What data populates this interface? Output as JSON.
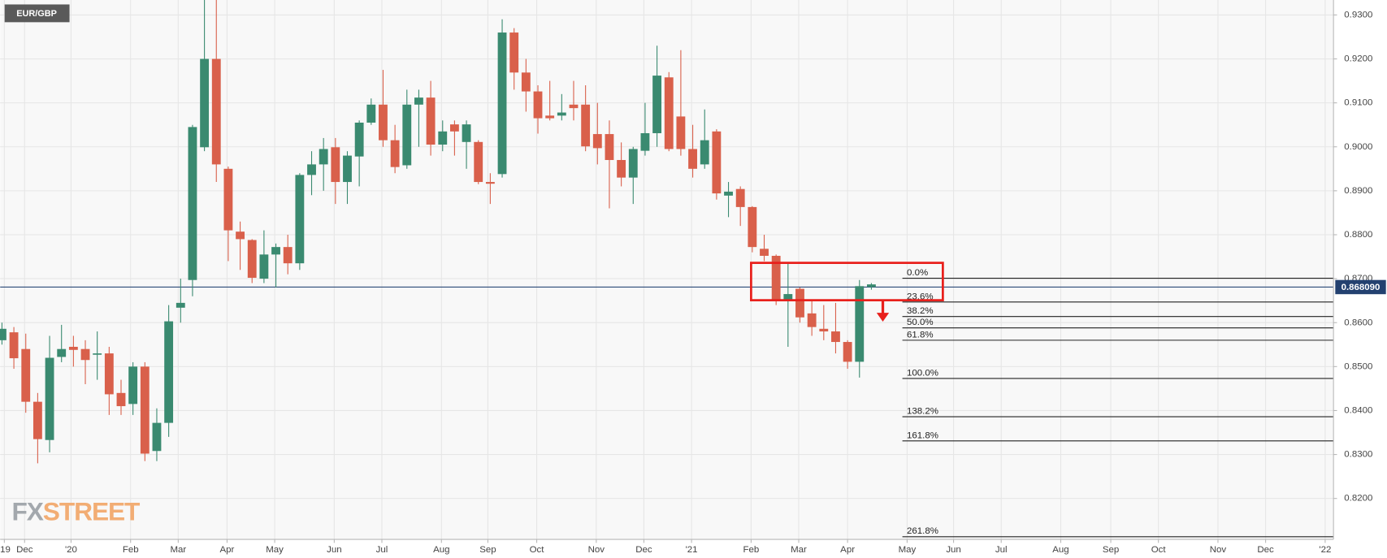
{
  "chart_data": {
    "type": "candlestick",
    "symbol": "EUR/GBP",
    "watermark": [
      "FX",
      "STREET"
    ],
    "up_color": "#3a8a70",
    "down_color": "#d9604b",
    "grid": true,
    "open": [
      0.856,
      0.8578,
      0.854,
      0.842,
      0.8333,
      0.8522,
      0.8545,
      0.854,
      0.8527,
      0.853,
      0.844,
      0.8415,
      0.85,
      0.8308,
      0.8372,
      0.8634,
      0.8697,
      0.8999,
      0.92,
      0.895,
      0.8807,
      0.8788,
      0.87,
      0.8755,
      0.8772,
      0.8735,
      0.8936,
      0.896,
      0.8999,
      0.892,
      0.8978,
      0.9055,
      0.9096,
      0.9015,
      0.8958,
      0.9096,
      0.9112,
      0.9005,
      0.9051,
      0.9011,
      0.9011,
      0.892,
      0.8938,
      0.926,
      0.9169,
      0.9126,
      0.9071,
      0.9071,
      0.9096,
      0.9096,
      0.9029,
      0.9029,
      0.897,
      0.893,
      0.8991,
      0.9031,
      0.9158,
      0.9069,
      0.8995,
      0.896,
      0.9035,
      0.8889,
      0.8904,
      0.8863,
      0.8768,
      0.8752,
      0.8651,
      0.8677,
      0.8621,
      0.8586,
      0.858,
      0.8556,
      0.8511,
      0.8681
    ],
    "high": [
      0.86,
      0.859,
      0.8575,
      0.844,
      0.857,
      0.8595,
      0.857,
      0.856,
      0.858,
      0.8545,
      0.847,
      0.851,
      0.851,
      0.8405,
      0.864,
      0.87,
      0.905,
      0.934,
      0.934,
      0.8955,
      0.883,
      0.879,
      0.881,
      0.878,
      0.88,
      0.894,
      0.899,
      0.902,
      0.902,
      0.899,
      0.906,
      0.911,
      0.9175,
      0.905,
      0.913,
      0.913,
      0.915,
      0.906,
      0.906,
      0.906,
      0.9015,
      0.894,
      0.929,
      0.927,
      0.92,
      0.914,
      0.915,
      0.912,
      0.915,
      0.914,
      0.91,
      0.906,
      0.901,
      0.9,
      0.91,
      0.923,
      0.917,
      0.922,
      0.905,
      0.9085,
      0.904,
      0.892,
      0.891,
      0.8865,
      0.88,
      0.8755,
      0.8735,
      0.868,
      0.865,
      0.864,
      0.8645,
      0.856,
      0.8697,
      0.869
    ],
    "low": [
      0.855,
      0.8495,
      0.8395,
      0.828,
      0.8305,
      0.851,
      0.85,
      0.846,
      0.847,
      0.839,
      0.839,
      0.839,
      0.8285,
      0.8285,
      0.834,
      0.86,
      0.866,
      0.899,
      0.892,
      0.874,
      0.872,
      0.869,
      0.869,
      0.868,
      0.871,
      0.872,
      0.889,
      0.89,
      0.887,
      0.887,
      0.891,
      0.905,
      0.9,
      0.894,
      0.895,
      0.9,
      0.898,
      0.899,
      0.898,
      0.895,
      0.8915,
      0.887,
      0.893,
      0.913,
      0.908,
      0.903,
      0.906,
      0.906,
      0.906,
      0.899,
      0.896,
      0.886,
      0.891,
      0.887,
      0.898,
      0.9,
      0.899,
      0.898,
      0.893,
      0.895,
      0.888,
      0.884,
      0.882,
      0.876,
      0.874,
      0.864,
      0.8545,
      0.86,
      0.857,
      0.856,
      0.853,
      0.8495,
      0.8475,
      0.8675
    ],
    "close": [
      0.8586,
      0.8519,
      0.842,
      0.8335,
      0.852,
      0.854,
      0.8538,
      0.8515,
      0.853,
      0.8437,
      0.841,
      0.85,
      0.8302,
      0.8372,
      0.8603,
      0.8645,
      0.9045,
      0.92,
      0.896,
      0.881,
      0.879,
      0.8702,
      0.8755,
      0.8772,
      0.8735,
      0.8936,
      0.896,
      0.8995,
      0.892,
      0.898,
      0.9055,
      0.9096,
      0.9015,
      0.8954,
      0.9096,
      0.9112,
      0.9005,
      0.9035,
      0.9035,
      0.9051,
      0.892,
      0.8916,
      0.926,
      0.9169,
      0.9126,
      0.9065,
      0.9065,
      0.9078,
      0.9088,
      0.9001,
      0.8997,
      0.897,
      0.893,
      0.8995,
      0.9031,
      0.9162,
      0.8995,
      0.8995,
      0.895,
      0.9015,
      0.8894,
      0.8898,
      0.8863,
      0.8772,
      0.8752,
      0.8651,
      0.8665,
      0.8612,
      0.859,
      0.858,
      0.8556,
      0.8511,
      0.8683,
      0.8687
    ],
    "xlim": [
      -0.15,
      111.8
    ],
    "xticks": [
      {
        "value": 0.2,
        "label": "'19"
      },
      {
        "value": 1.9,
        "label": "Dec"
      },
      {
        "value": 5.8,
        "label": "'20"
      },
      {
        "value": 10.8,
        "label": "Feb"
      },
      {
        "value": 14.8,
        "label": "Mar"
      },
      {
        "value": 18.9,
        "label": "Apr"
      },
      {
        "value": 22.9,
        "label": "May"
      },
      {
        "value": 27.9,
        "label": "Jun"
      },
      {
        "value": 31.9,
        "label": "Jul"
      },
      {
        "value": 36.9,
        "label": "Aug"
      },
      {
        "value": 40.8,
        "label": "Sep"
      },
      {
        "value": 44.9,
        "label": "Oct"
      },
      {
        "value": 49.9,
        "label": "Nov"
      },
      {
        "value": 53.9,
        "label": "Dec"
      },
      {
        "value": 57.9,
        "label": "'21"
      },
      {
        "value": 62.9,
        "label": "Feb"
      },
      {
        "value": 66.9,
        "label": "Mar"
      },
      {
        "value": 71.0,
        "label": "Apr"
      },
      {
        "value": 76.0,
        "label": "May"
      },
      {
        "value": 79.9,
        "label": "Jun"
      },
      {
        "value": 83.9,
        "label": "Jul"
      },
      {
        "value": 88.9,
        "label": "Aug"
      },
      {
        "value": 93.1,
        "label": "Sep"
      },
      {
        "value": 97.1,
        "label": "Oct"
      },
      {
        "value": 102.1,
        "label": "Nov"
      },
      {
        "value": 106.1,
        "label": "Dec"
      },
      {
        "value": 111.1,
        "label": "'22"
      }
    ],
    "ylim": [
      0.8107,
      0.9334
    ],
    "yticks": [
      {
        "value": 0.82,
        "label": "0.8200"
      },
      {
        "value": 0.83,
        "label": "0.8300"
      },
      {
        "value": 0.84,
        "label": "0.8400"
      },
      {
        "value": 0.85,
        "label": "0.8500"
      },
      {
        "value": 0.86,
        "label": "0.8600"
      },
      {
        "value": 0.87,
        "label": "0.8700"
      },
      {
        "value": 0.88,
        "label": "0.8800"
      },
      {
        "value": 0.89,
        "label": "0.8900"
      },
      {
        "value": 0.9,
        "label": "0.9000"
      },
      {
        "value": 0.91,
        "label": "0.9100"
      },
      {
        "value": 0.92,
        "label": "0.9200"
      },
      {
        "value": 0.93,
        "label": "0.9300"
      }
    ],
    "last_price": {
      "value": 0.86809,
      "label": "0.868090"
    },
    "fib_levels": [
      {
        "value": 0.8701,
        "label": "0.0%"
      },
      {
        "value": 0.8647,
        "label": "23.6%"
      },
      {
        "value": 0.8614,
        "label": "38.2%"
      },
      {
        "value": 0.8588,
        "label": "50.0%"
      },
      {
        "value": 0.856,
        "label": "61.8%"
      },
      {
        "value": 0.8473,
        "label": "100.0%"
      },
      {
        "value": 0.8386,
        "label": "138.2%"
      },
      {
        "value": 0.8331,
        "label": "161.8%"
      },
      {
        "value": 0.8113,
        "label": "261.8%"
      }
    ],
    "zone": {
      "x": [
        62.9,
        79.0
      ],
      "y": [
        0.8651,
        0.8736
      ],
      "color": "#e8201c"
    }
  }
}
